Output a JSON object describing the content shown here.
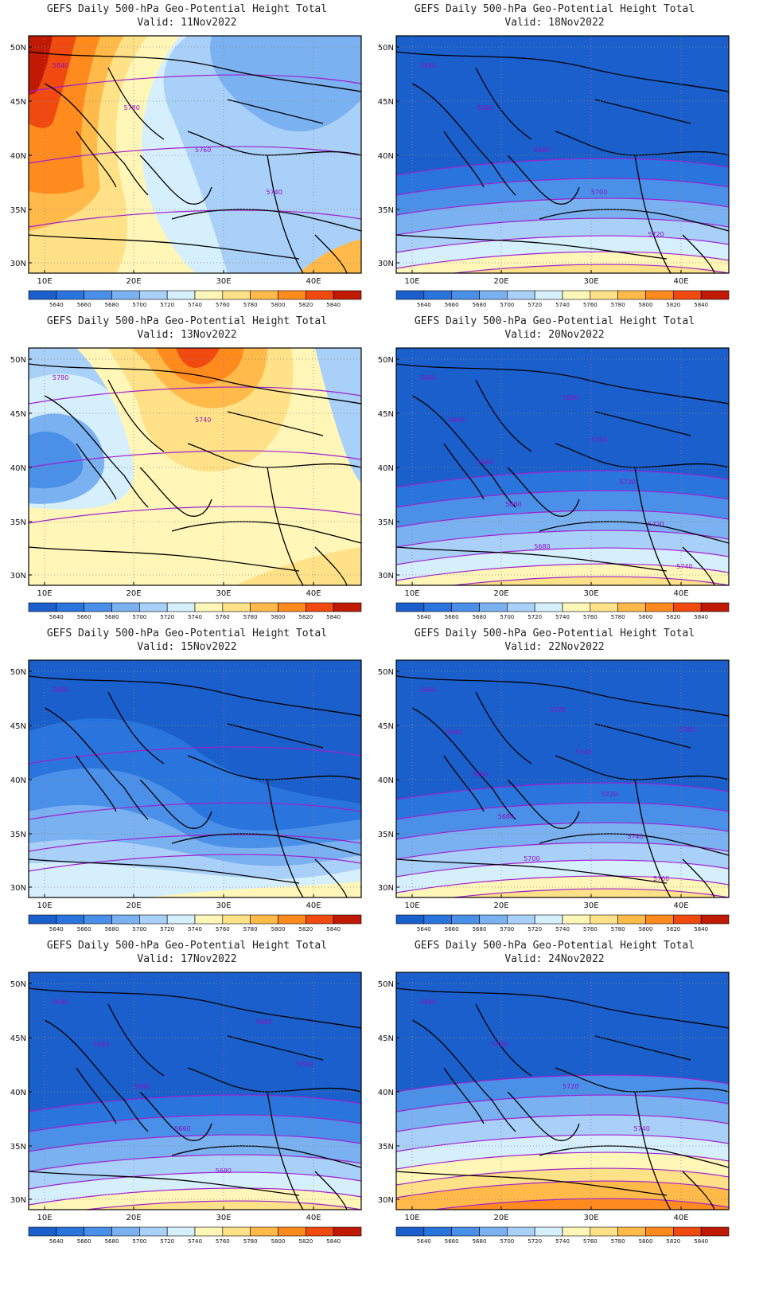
{
  "title_line": "GEFS Daily 500-hPa Geo-Potential Height Total",
  "lat_labels": [
    "50N",
    "45N",
    "40N",
    "35N",
    "30N"
  ],
  "lon_labels": [
    "10E",
    "20E",
    "30E",
    "40E"
  ],
  "colorbar": {
    "labels": [
      "5640",
      "5660",
      "5680",
      "5700",
      "5720",
      "5740",
      "5760",
      "5780",
      "5800",
      "5820",
      "5840"
    ],
    "colors": [
      "#1a5fcc",
      "#2a74dd",
      "#4a8fe8",
      "#7ab1f1",
      "#a9d0f8",
      "#d6effd",
      "#fff6b8",
      "#ffe188",
      "#ffba4a",
      "#ff8a1e",
      "#f04a10",
      "#c01a04"
    ]
  },
  "panels": [
    {
      "valid": "Valid: 11Nov2022",
      "scene": "warm_w",
      "contour_labels": [
        "5840",
        "5780",
        "5760",
        "5740"
      ]
    },
    {
      "valid": "Valid: 18Nov2022",
      "scene": "cold",
      "contour_labels": [
        "5640",
        "5660",
        "5680",
        "5700",
        "5720"
      ]
    },
    {
      "valid": "Valid: 13Nov2022",
      "scene": "warm_n",
      "contour_labels": [
        "5780",
        "5740"
      ]
    },
    {
      "valid": "Valid: 20Nov2022",
      "scene": "cold",
      "contour_labels": [
        "5640",
        "5640",
        "5660",
        "5660",
        "5680",
        "5680",
        "5700",
        "5720",
        "5720",
        "5740"
      ]
    },
    {
      "valid": "Valid: 15Nov2022",
      "scene": "mid",
      "contour_labels": [
        "5680"
      ]
    },
    {
      "valid": "Valid: 22Nov2022",
      "scene": "cold",
      "contour_labels": [
        "5640",
        "5640",
        "5660",
        "5680",
        "5700",
        "5720",
        "5740",
        "5720",
        "5740",
        "5760",
        "5760"
      ]
    },
    {
      "valid": "Valid: 17Nov2022",
      "scene": "cold",
      "contour_labels": [
        "5640",
        "5660",
        "5640",
        "5660",
        "5680",
        "5680",
        "5700"
      ]
    },
    {
      "valid": "Valid: 24Nov2022",
      "scene": "cold2",
      "contour_labels": [
        "5680",
        "5700",
        "5720",
        "5740"
      ]
    }
  ]
}
